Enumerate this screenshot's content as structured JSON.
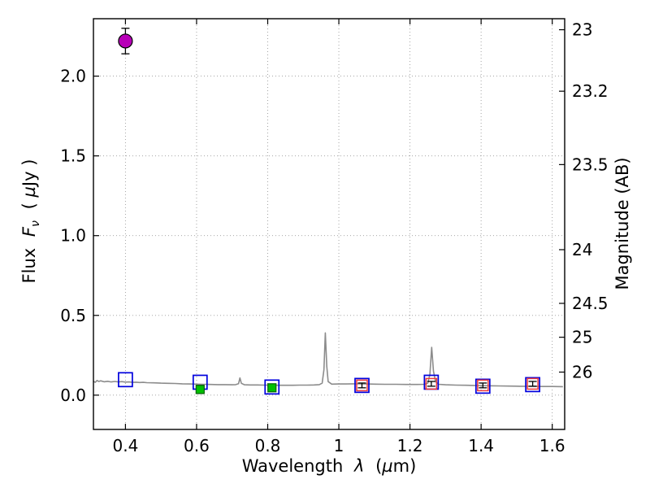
{
  "figure": {
    "background": "#ffffff",
    "frame_color": "#000000"
  },
  "chart_data": {
    "type": "line+scatter",
    "title": "",
    "xlabel": "Wavelength λ (µm)",
    "ylabel_left": "Flux Fν ( µJy )",
    "ylabel_right": "Magnitude (AB)",
    "axis_labels": {
      "x": {
        "word": "Wavelength",
        "symbol": "λ",
        "units_open": "(",
        "mu": "µ",
        "units_close": "m)"
      },
      "y_left": {
        "word": "Flux",
        "symbol": "F",
        "subscript": "ν",
        "units_open": "(",
        "mu": "µ",
        "units_close": "Jy )"
      },
      "y_right": "Magnitude (AB)"
    },
    "xlim": [
      0.31,
      1.635
    ],
    "ylim": [
      -0.215,
      2.36
    ],
    "x_ticks": [
      0.4,
      0.6,
      0.8,
      1.0,
      1.2,
      1.4,
      1.6
    ],
    "x_tick_labels": [
      "0.4",
      "0.6",
      "0.8",
      "1",
      "1.2",
      "1.4",
      "1.6"
    ],
    "y_ticks_left": [
      0.0,
      0.5,
      1.0,
      1.5,
      2.0
    ],
    "y_tick_labels_left": [
      "0.0",
      "0.5",
      "1.0",
      "1.5",
      "2.0"
    ],
    "y_ticks_right": [
      23,
      23.2,
      23.5,
      24,
      24.5,
      25,
      26
    ],
    "y_tick_labels_right": [
      "23",
      "23.2",
      "23.5",
      "24",
      "24.5",
      "25",
      "26"
    ],
    "mag_zeropoint": 23.9,
    "grid": {
      "show": true,
      "color": "#9a9a9a",
      "dash": "1,3",
      "width": 0.9
    },
    "spectrum": {
      "name": "model-spectrum",
      "color": "#8c8c8c",
      "width": 1.6,
      "points": [
        [
          0.31,
          0.088
        ],
        [
          0.315,
          0.08
        ],
        [
          0.32,
          0.092
        ],
        [
          0.325,
          0.086
        ],
        [
          0.33,
          0.09
        ],
        [
          0.34,
          0.084
        ],
        [
          0.35,
          0.087
        ],
        [
          0.36,
          0.083
        ],
        [
          0.37,
          0.086
        ],
        [
          0.38,
          0.083
        ],
        [
          0.39,
          0.085
        ],
        [
          0.4,
          0.082
        ],
        [
          0.41,
          0.083
        ],
        [
          0.42,
          0.08
        ],
        [
          0.43,
          0.081
        ],
        [
          0.44,
          0.079
        ],
        [
          0.45,
          0.08
        ],
        [
          0.46,
          0.078
        ],
        [
          0.48,
          0.077
        ],
        [
          0.5,
          0.075
        ],
        [
          0.52,
          0.074
        ],
        [
          0.54,
          0.073
        ],
        [
          0.56,
          0.071
        ],
        [
          0.58,
          0.07
        ],
        [
          0.6,
          0.069
        ],
        [
          0.62,
          0.068
        ],
        [
          0.64,
          0.067
        ],
        [
          0.66,
          0.066
        ],
        [
          0.68,
          0.066
        ],
        [
          0.7,
          0.065
        ],
        [
          0.71,
          0.066
        ],
        [
          0.718,
          0.072
        ],
        [
          0.722,
          0.108
        ],
        [
          0.726,
          0.074
        ],
        [
          0.735,
          0.065
        ],
        [
          0.75,
          0.064
        ],
        [
          0.77,
          0.064
        ],
        [
          0.79,
          0.063
        ],
        [
          0.81,
          0.063
        ],
        [
          0.83,
          0.062
        ],
        [
          0.85,
          0.062
        ],
        [
          0.87,
          0.062
        ],
        [
          0.89,
          0.063
        ],
        [
          0.91,
          0.063
        ],
        [
          0.93,
          0.064
        ],
        [
          0.945,
          0.066
        ],
        [
          0.953,
          0.075
        ],
        [
          0.958,
          0.16
        ],
        [
          0.962,
          0.39
        ],
        [
          0.966,
          0.18
        ],
        [
          0.97,
          0.085
        ],
        [
          0.98,
          0.069
        ],
        [
          1.0,
          0.07
        ],
        [
          1.02,
          0.07
        ],
        [
          1.04,
          0.071
        ],
        [
          1.06,
          0.071
        ],
        [
          1.08,
          0.07
        ],
        [
          1.1,
          0.069
        ],
        [
          1.13,
          0.068
        ],
        [
          1.16,
          0.068
        ],
        [
          1.19,
          0.067
        ],
        [
          1.22,
          0.067
        ],
        [
          1.24,
          0.068
        ],
        [
          1.25,
          0.075
        ],
        [
          1.256,
          0.13
        ],
        [
          1.261,
          0.3
        ],
        [
          1.266,
          0.15
        ],
        [
          1.272,
          0.085
        ],
        [
          1.28,
          0.068
        ],
        [
          1.3,
          0.065
        ],
        [
          1.33,
          0.063
        ],
        [
          1.36,
          0.062
        ],
        [
          1.39,
          0.06
        ],
        [
          1.42,
          0.059
        ],
        [
          1.45,
          0.058
        ],
        [
          1.48,
          0.057
        ],
        [
          1.51,
          0.056
        ],
        [
          1.54,
          0.055
        ],
        [
          1.57,
          0.054
        ],
        [
          1.6,
          0.054
        ],
        [
          1.63,
          0.053
        ]
      ]
    },
    "series": [
      {
        "name": "model-photometry-blue-squares",
        "marker": "square",
        "fill": "none",
        "edge": "#0000dd",
        "size": 17,
        "edge_width": 1.7,
        "points": [
          {
            "x": 0.4,
            "y": 0.097
          },
          {
            "x": 0.61,
            "y": 0.081
          },
          {
            "x": 0.812,
            "y": 0.051
          },
          {
            "x": 1.065,
            "y": 0.061
          },
          {
            "x": 1.26,
            "y": 0.081
          },
          {
            "x": 1.405,
            "y": 0.056
          },
          {
            "x": 1.545,
            "y": 0.066
          }
        ]
      },
      {
        "name": "observed-nir-red-squares",
        "marker": "square",
        "fill": "none",
        "edge": "#ee3a3a",
        "size": 13,
        "edge_width": 1.5,
        "points": [
          {
            "x": 1.065,
            "y": 0.061,
            "yerr": 0.015
          },
          {
            "x": 1.26,
            "y": 0.071,
            "yerr": 0.015
          },
          {
            "x": 1.405,
            "y": 0.061,
            "yerr": 0.015
          },
          {
            "x": 1.545,
            "y": 0.071,
            "yerr": 0.015
          }
        ]
      },
      {
        "name": "observed-optical-green-squares",
        "marker": "square",
        "fill": "#00c000",
        "edge": "#006600",
        "size": 10,
        "edge_width": 1.2,
        "points": [
          {
            "x": 0.61,
            "y": 0.036,
            "yerr": 0.025
          },
          {
            "x": 0.812,
            "y": 0.046,
            "yerr": 0.02
          }
        ]
      },
      {
        "name": "u-band-detection-magenta-circle",
        "marker": "circle",
        "fill": "#b800b8",
        "edge": "#000000",
        "size": 8.5,
        "edge_width": 1.2,
        "points": [
          {
            "x": 0.4,
            "y": 2.22,
            "yerr": 0.08
          }
        ]
      }
    ],
    "errorbar_color": "#000000"
  }
}
